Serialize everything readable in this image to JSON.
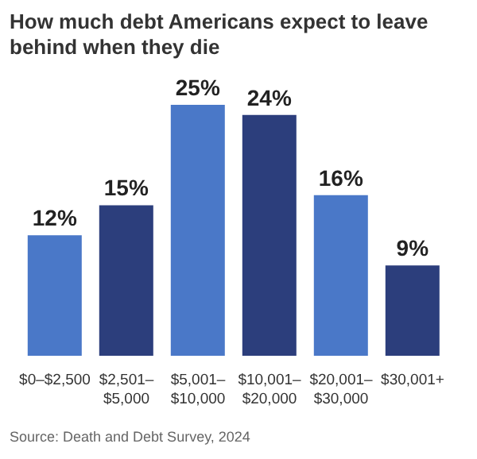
{
  "chart_data": {
    "type": "bar",
    "title": "How much debt Americans expect to leave behind when they die",
    "categories": [
      "$0–$2,500",
      "$2,501–$5,000",
      "$5,001–$10,000",
      "$10,001–$20,000",
      "$20,001–$30,000",
      "$30,001+"
    ],
    "values": [
      12,
      15,
      25,
      24,
      16,
      9
    ],
    "colors": [
      "#4a78c8",
      "#2c3e7c",
      "#4a78c8",
      "#2c3e7c",
      "#4a78c8",
      "#2c3e7c"
    ],
    "data_labels": true,
    "value_labels": [
      "12%",
      "15%",
      "25%",
      "24%",
      "16%",
      "9%"
    ],
    "grid": false,
    "legend": false,
    "annotations": [
      "Source: Death and Debt Survey, 2024"
    ]
  }
}
